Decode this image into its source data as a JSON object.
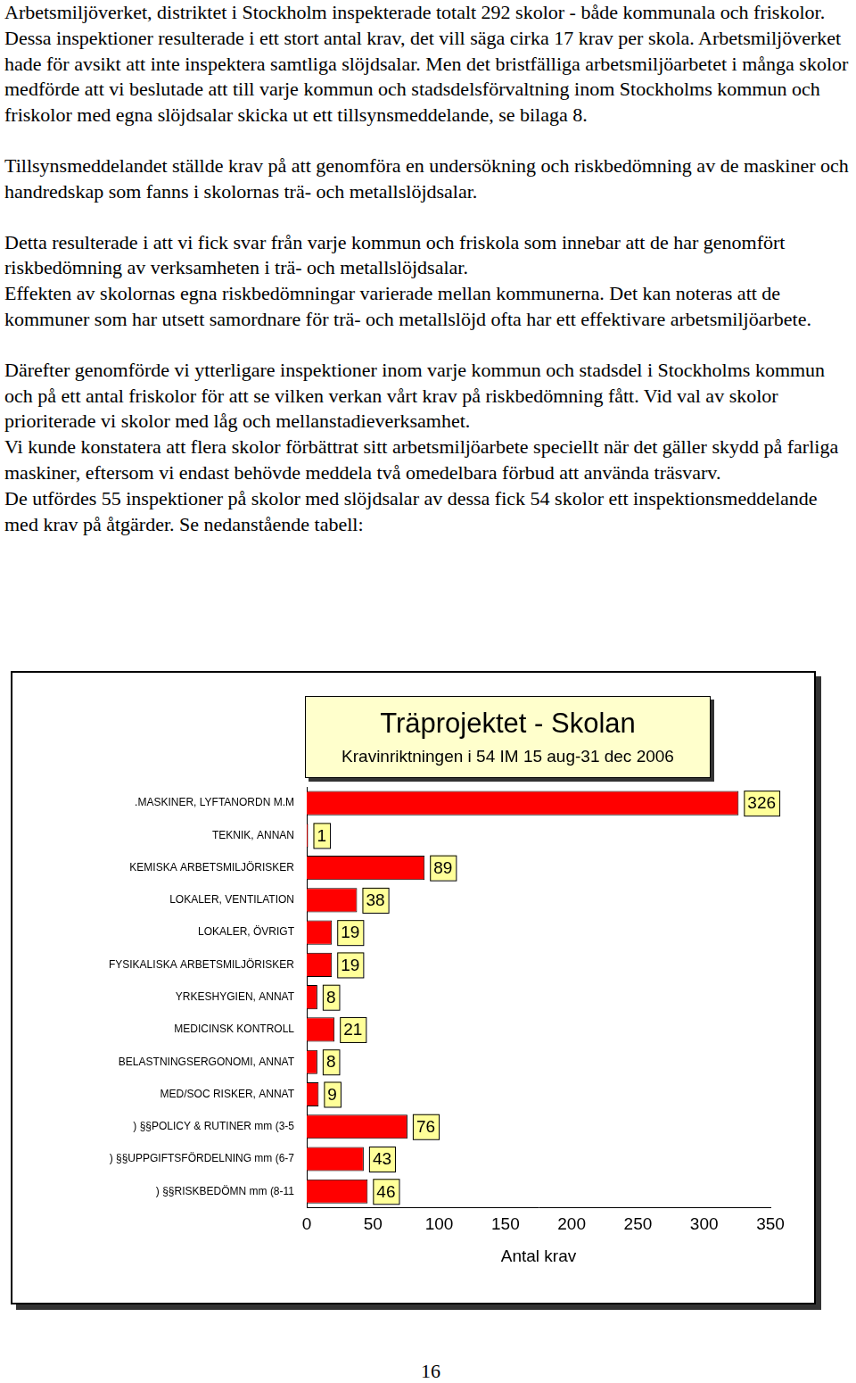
{
  "paragraphs": [
    [
      "Arbetsmiljöverket, distriktet i Stockholm inspekterade totalt 292 skolor - både kommunala och friskolor. Dessa inspektioner resulterade i ett stort antal krav, det vill säga cirka 17 krav per skola. Arbetsmiljöverket hade för avsikt att inte inspektera samtliga slöjdsalar. Men det bristfälliga arbetsmiljöarbetet i många skolor medförde att vi beslutade att till varje kommun och stadsdelsförvaltning inom Stockholms kommun och friskolor med egna slöjdsalar skicka ut ett tillsynsmeddelande, se bilaga 8."
    ],
    [
      "Tillsynsmeddelandet ställde krav på att genomföra en undersökning och riskbedömning av de maskiner och handredskap som fanns i skolornas trä- och metallslöjdsalar."
    ],
    [
      "Detta resulterade i att vi fick svar från varje kommun och friskola som innebar att de har genomfört riskbedömning av verksamheten i trä- och metallslöjdsalar.",
      "Effekten av skolornas egna riskbedömningar varierade mellan kommunerna. Det kan noteras att de kommuner som har utsett samordnare för trä- och metallslöjd ofta har ett effektivare arbetsmiljöarbete."
    ],
    [
      "Därefter genomförde vi ytterligare inspektioner inom varje kommun och stadsdel i Stockholms kommun och på ett antal friskolor för att se vilken verkan vårt krav på riskbedömning fått. Vid val av skolor prioriterade vi skolor med låg och mellanstadieverksamhet.",
      "Vi kunde konstatera att flera skolor förbättrat sitt arbetsmiljöarbete speciellt när det gäller skydd på farliga maskiner, eftersom vi endast behövde meddela två omedelbara förbud att använda träsvarv.",
      "De utfördes 55 inspektioner på skolor med slöjdsalar av dessa fick 54 skolor ett inspektionsmeddelande med krav på åtgärder. Se nedanstående tabell:"
    ]
  ],
  "chart_data": {
    "type": "bar",
    "orientation": "horizontal",
    "title": "Träprojektet - Skolan",
    "subtitle": "Kravinriktningen i 54 IM 15 aug-31 dec 2006",
    "x_label": "Antal krav",
    "categories": [
      ".MASKINER, LYFTANORDN M.M",
      "TEKNIK, ANNAN",
      "KEMISKA ARBETSMILJÖRISKER",
      "LOKALER, VENTILATION",
      "LOKALER, ÖVRIGT",
      "FYSIKALISKA ARBETSMILJÖRISKER",
      "YRKESHYGIEN, ANNAT",
      "MEDICINSK KONTROLL",
      "BELASTNINGSERGONOMI, ANNAT",
      "MED/SOC RISKER, ANNAT",
      ") §§POLICY & RUTINER mm (3-5",
      ") §§UPPGIFTSFÖRDELNING mm (6-7",
      ") §§RISKBEDÖMN mm (8-11"
    ],
    "values": [
      326,
      1,
      89,
      38,
      19,
      19,
      8,
      21,
      8,
      9,
      76,
      43,
      46
    ],
    "color": "#ff0000",
    "xlim": [
      0,
      350
    ],
    "xticks": [
      0,
      50,
      100,
      150,
      200,
      250,
      300,
      350
    ],
    "grid": false,
    "data_labels": true
  },
  "page_number": 16
}
